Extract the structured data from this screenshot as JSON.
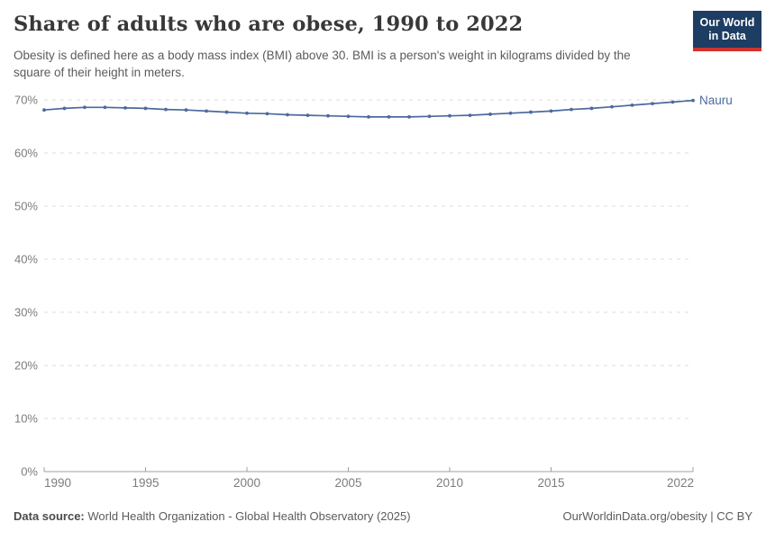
{
  "header": {
    "title": "Share of adults who are obese, 1990 to 2022",
    "subtitle": "Obesity is defined here as a body mass index (BMI) above 30. BMI is a person's weight in kilograms divided by the square of their height in meters.",
    "logo": {
      "line1": "Our World",
      "line2": "in Data",
      "bg_color": "#1d3d63",
      "bar_color": "#d0342c"
    }
  },
  "chart_data": {
    "type": "line",
    "title": "Share of adults who are obese, 1990 to 2022",
    "x": [
      1990,
      1991,
      1992,
      1993,
      1994,
      1995,
      1996,
      1997,
      1998,
      1999,
      2000,
      2001,
      2002,
      2003,
      2004,
      2005,
      2006,
      2007,
      2008,
      2009,
      2010,
      2011,
      2012,
      2013,
      2014,
      2015,
      2016,
      2017,
      2018,
      2019,
      2020,
      2021,
      2022
    ],
    "series": [
      {
        "name": "Nauru",
        "color": "#4c6a9c",
        "values": [
          68.1,
          68.4,
          68.6,
          68.6,
          68.5,
          68.4,
          68.2,
          68.1,
          67.9,
          67.7,
          67.5,
          67.4,
          67.2,
          67.1,
          67.0,
          66.9,
          66.8,
          66.8,
          66.8,
          66.9,
          67.0,
          67.1,
          67.3,
          67.5,
          67.7,
          67.9,
          68.2,
          68.4,
          68.7,
          69.0,
          69.3,
          69.6,
          69.9
        ]
      }
    ],
    "xlabel": "",
    "ylabel": "",
    "xlim": [
      1990,
      2022
    ],
    "ylim": [
      0,
      70
    ],
    "x_ticks": [
      1990,
      1995,
      2000,
      2005,
      2010,
      2015,
      2022
    ],
    "y_ticks": [
      0,
      10,
      20,
      30,
      40,
      50,
      60,
      70
    ],
    "y_tick_suffix": "%",
    "grid": "horizontal-dashed",
    "legend_position": "line-end-label",
    "grid_color": "#dcdcdc",
    "axis_color": "#a0a0a0",
    "tick_label_color": "#7c7c7c"
  },
  "footer": {
    "source_label": "Data source:",
    "source_text": "World Health Organization - Global Health Observatory (2025)",
    "attribution": "OurWorldinData.org/obesity | CC BY"
  }
}
